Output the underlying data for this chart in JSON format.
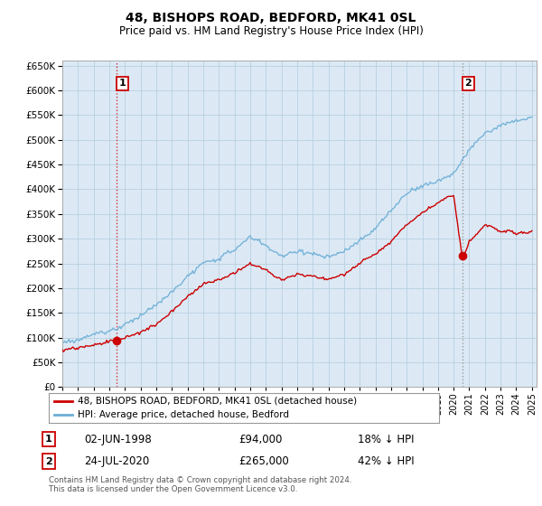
{
  "title": "48, BISHOPS ROAD, BEDFORD, MK41 0SL",
  "subtitle": "Price paid vs. HM Land Registry's House Price Index (HPI)",
  "legend_line1": "48, BISHOPS ROAD, BEDFORD, MK41 0SL (detached house)",
  "legend_line2": "HPI: Average price, detached house, Bedford",
  "footnote": "Contains HM Land Registry data © Crown copyright and database right 2024.\nThis data is licensed under the Open Government Licence v3.0.",
  "annotation1_label": "1",
  "annotation1_date": "02-JUN-1998",
  "annotation1_price": "£94,000",
  "annotation1_hpi": "18% ↓ HPI",
  "annotation2_label": "2",
  "annotation2_date": "24-JUL-2020",
  "annotation2_price": "£265,000",
  "annotation2_hpi": "42% ↓ HPI",
  "property_color": "#cc0000",
  "hpi_color": "#6baed6",
  "chart_bg": "#dce9f5",
  "grid_color": "#b8cfe0",
  "vline1_color": "#cc0000",
  "vline2_color": "#888888",
  "sale1_x": 1998.45,
  "sale1_y": 94000,
  "sale2_x": 2020.55,
  "sale2_y": 265000,
  "ylim": [
    0,
    660000
  ],
  "yticks": [
    0,
    50000,
    100000,
    150000,
    200000,
    250000,
    300000,
    350000,
    400000,
    450000,
    500000,
    550000,
    600000,
    650000
  ],
  "xlim_start": 1995,
  "xlim_end": 2025.3
}
